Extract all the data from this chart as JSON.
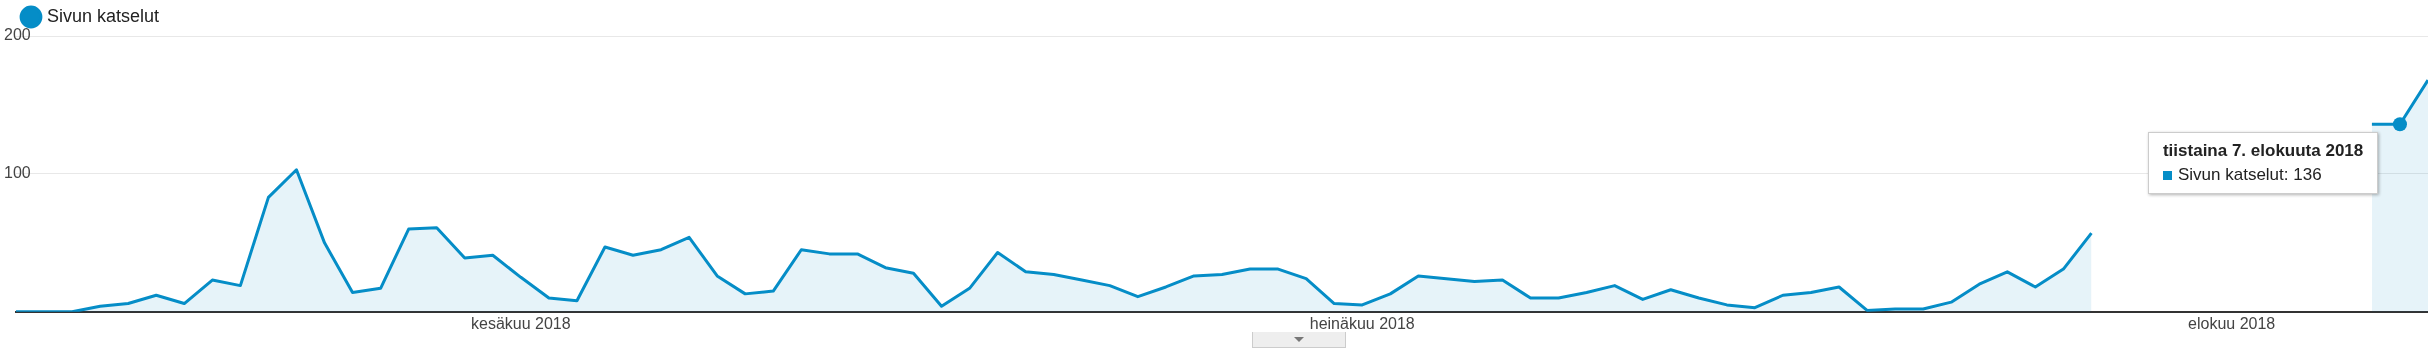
{
  "chart_data": {
    "type": "area",
    "x": [
      "2018-05-14",
      "2018-05-15",
      "2018-05-16",
      "2018-05-17",
      "2018-05-18",
      "2018-05-19",
      "2018-05-20",
      "2018-05-21",
      "2018-05-22",
      "2018-05-23",
      "2018-05-24",
      "2018-05-25",
      "2018-05-26",
      "2018-05-27",
      "2018-05-28",
      "2018-05-29",
      "2018-05-30",
      "2018-05-31",
      "2018-06-01",
      "2018-06-02",
      "2018-06-03",
      "2018-06-04",
      "2018-06-05",
      "2018-06-06",
      "2018-06-07",
      "2018-06-08",
      "2018-06-09",
      "2018-06-10",
      "2018-06-11",
      "2018-06-12",
      "2018-06-13",
      "2018-06-14",
      "2018-06-15",
      "2018-06-16",
      "2018-06-17",
      "2018-06-18",
      "2018-06-19",
      "2018-06-20",
      "2018-06-21",
      "2018-06-22",
      "2018-06-23",
      "2018-06-24",
      "2018-06-25",
      "2018-06-26",
      "2018-06-27",
      "2018-06-28",
      "2018-06-29",
      "2018-06-30",
      "2018-07-01",
      "2018-07-02",
      "2018-07-03",
      "2018-07-04",
      "2018-07-05",
      "2018-07-06",
      "2018-07-07",
      "2018-07-08",
      "2018-07-09",
      "2018-07-10",
      "2018-07-11",
      "2018-07-12",
      "2018-07-13",
      "2018-07-14",
      "2018-07-15",
      "2018-07-16",
      "2018-07-17",
      "2018-07-18",
      "2018-07-19",
      "2018-07-20",
      "2018-07-21",
      "2018-07-22",
      "2018-07-23",
      "2018-07-24",
      "2018-07-25",
      "2018-07-26",
      "2018-07-27",
      "2018-07-28",
      "2018-07-29",
      "2018-07-30",
      "2018-07-31",
      "2018-08-01",
      "2018-08-02",
      "2018-08-03",
      "2018-08-04",
      "2018-08-05",
      "2018-08-06",
      "2018-08-07",
      "2018-08-08"
    ],
    "series": [
      {
        "name": "Sivun katselut",
        "color": "#058dc7",
        "values": [
          0,
          0,
          0,
          4,
          6,
          12,
          6,
          23,
          19,
          83,
          103,
          50,
          14,
          17,
          60,
          61,
          39,
          41,
          25,
          10,
          8,
          47,
          41,
          45,
          54,
          26,
          13,
          15,
          45,
          42,
          42,
          32,
          28,
          4,
          17,
          43,
          29,
          27,
          23,
          19,
          11,
          18,
          26,
          27,
          31,
          31,
          24,
          6,
          5,
          13,
          26,
          24,
          22,
          23,
          10,
          10,
          14,
          19,
          9,
          16,
          10,
          5,
          3,
          12,
          14,
          18,
          1,
          2,
          2,
          7,
          20,
          29,
          18,
          31,
          57,
          null,
          null,
          null,
          null,
          null,
          null,
          null,
          null,
          null,
          136,
          136,
          168
        ]
      }
    ],
    "xlim": [
      "2018-05-14",
      "2018-08-08"
    ],
    "xticks": [
      {
        "value": "2018-06-01",
        "label": "kesäkuu 2018"
      },
      {
        "value": "2018-07-01",
        "label": "heinäkuu 2018"
      },
      {
        "value": "2018-08-01",
        "label": "elokuu 2018"
      }
    ],
    "ylim": [
      0,
      200
    ],
    "yticks": [
      {
        "value": 0,
        "label": null
      },
      100,
      200
    ],
    "grid": "y",
    "legend": "top left",
    "marker": "none",
    "line_style": "solid",
    "annotations": [
      {
        "text": "tiistaina 7. elokuuta 2018",
        "x": "2018-08-07",
        "y": 136
      },
      "Sivun katselut: 136"
    ]
  }
}
